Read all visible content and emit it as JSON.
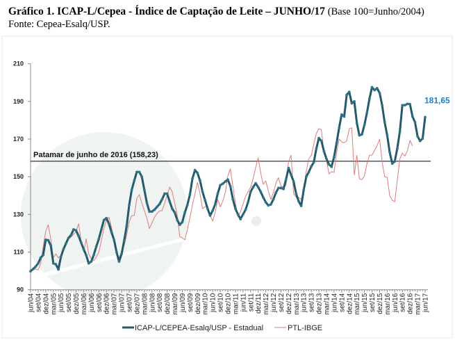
{
  "header": {
    "title_bold": "Gráfico 1. ICAP-L/Cepea - Índice de Captação de Leite – JUNHO/17",
    "title_base": "(Base 100=Junho/2004)",
    "source": "Fonte: Cepea-Esalq/USP."
  },
  "chart_data": {
    "type": "line",
    "title": "Gráfico 1. ICAP-L/Cepea - Índice de Captação de Leite – JUNHO/17 (Base 100=Junho/2004)",
    "xlabel": "",
    "ylabel": "",
    "ylim": [
      90,
      210
    ],
    "yticks": [
      "90",
      "110",
      "130",
      "150",
      "170",
      "190",
      "210"
    ],
    "x_start": "jun/04",
    "x_frequency": "monthly",
    "xticks": [
      "jun/04",
      "set/04",
      "dez/04",
      "mar/05",
      "jun/05",
      "set/05",
      "dez/05",
      "mar/06",
      "jun/06",
      "set/06",
      "dez/06",
      "mar/07",
      "jun/07",
      "set/07",
      "dez/07",
      "mar/08",
      "jun/08",
      "set/08",
      "dez/08",
      "mar/09",
      "jun/09",
      "set/09",
      "dez/09",
      "mar/10",
      "jun/10",
      "set/10",
      "dez/10",
      "mar/11",
      "jun/11",
      "set/11",
      "dez/11",
      "mar/12",
      "jun/12",
      "set/12",
      "dez/12",
      "mar/13",
      "jun/13",
      "set/13",
      "dez/13",
      "mar/14",
      "jun/14",
      "set/14",
      "dez/14",
      "mar/15",
      "jun/15",
      "set/15",
      "dez/15",
      "mar/16",
      "jun/16",
      "set/16",
      "dez/16",
      "mar/17",
      "jun/17"
    ],
    "grid": false,
    "legend_position": "bottom",
    "reference_line": {
      "value": 158.23,
      "label": "Patamar de junho de 2016 (158,23)"
    },
    "last_value_label": "181,65",
    "series": [
      {
        "name": "ICAP-L/CEPEA-Esalq/USP - Estadual",
        "color": "#23596a",
        "values": [
          99.8,
          101,
          102.3,
          104,
          107,
          108.5,
          116.5,
          116.3,
          113.5,
          104,
          103.5,
          100.8,
          107.5,
          111.5,
          114.6,
          117.5,
          119,
          122,
          121.5,
          118.5,
          115,
          111.5,
          108.3,
          104,
          105,
          108.5,
          113,
          117,
          122,
          127,
          128,
          125,
          120.5,
          116.5,
          110,
          105,
          109,
          116,
          124,
          135,
          143,
          148,
          152.5,
          152.5,
          150,
          143,
          136,
          131.5,
          131.5,
          132.5,
          134,
          135.5,
          138,
          141,
          141,
          136.8,
          133,
          131,
          127,
          124.5,
          126,
          131,
          135,
          140.5,
          149,
          153.5,
          152,
          148,
          142,
          137.5,
          133,
          129.4,
          132,
          135.5,
          141,
          145.5,
          146.3,
          147.5,
          148.5,
          145,
          138,
          133,
          130,
          127.5,
          130,
          132.5,
          136.5,
          142,
          144.5,
          146.5,
          144.5,
          142,
          139,
          136.5,
          134.8,
          135.3,
          138,
          141.5,
          144,
          144,
          143.5,
          148.5,
          154.6,
          151,
          147.5,
          141,
          137,
          134.5,
          143,
          150,
          152.5,
          155.5,
          157.7,
          165,
          170.5,
          169,
          163.5,
          159.5,
          156.5,
          155.3,
          160.5,
          168,
          176,
          183,
          182,
          193.5,
          195,
          189,
          190,
          178.5,
          172,
          172.5,
          177.5,
          184,
          191.5,
          197.5,
          196,
          197,
          194.5,
          188,
          179,
          172,
          163,
          157,
          158.2,
          165,
          174,
          188,
          188,
          188.7,
          188.5,
          182,
          179,
          171.5,
          169,
          170.3,
          181.65
        ]
      },
      {
        "name": "PTL-IBGE",
        "color": "#e07a7a",
        "values": [
          100,
          100.5,
          101,
          100.5,
          104,
          113,
          121,
          124.5,
          117,
          107,
          109,
          107,
          108,
          111,
          114,
          117,
          118,
          119.5,
          121,
          125,
          116,
          110,
          117,
          109,
          106.5,
          105.4,
          107.5,
          110,
          116,
          122.6,
          127,
          128.5,
          123,
          117,
          110,
          107,
          110.5,
          113.5,
          119,
          126,
          129.4,
          129.4,
          138.5,
          140.5,
          136,
          132,
          128,
          122.5,
          125.5,
          128.5,
          130.5,
          131.8,
          132,
          136,
          140,
          144.5,
          142,
          136,
          129.4,
          118.3,
          117.5,
          116.5,
          122,
          128.2,
          135,
          141,
          147,
          141,
          133,
          134,
          134.5,
          129.4,
          126.5,
          131,
          138,
          134,
          137,
          141.7,
          150.5,
          154.2,
          145,
          136,
          129,
          131.5,
          135.5,
          139.5,
          142,
          144.5,
          149,
          155,
          160,
          152,
          146,
          147.8,
          142.5,
          138,
          141.5,
          146.5,
          149.5,
          145,
          144.5,
          145.4,
          158,
          161.4,
          141,
          139,
          139,
          138,
          142.5,
          153,
          159.5,
          161.4,
          167.5,
          173,
          175.5,
          175,
          162.6,
          158.9,
          151.5,
          152.7,
          152.3,
          163,
          170,
          168.5,
          168,
          169,
          175.5,
          176,
          151,
          161.4,
          149,
          148.5,
          150.5,
          157,
          161.5,
          161.5,
          164,
          166.5,
          170,
          158,
          150,
          149.7,
          140,
          137.5,
          136.8,
          148,
          159.5,
          162.6,
          161,
          163.8,
          169.4,
          166.3
        ]
      }
    ],
    "label_color": "#1f7fc9"
  }
}
